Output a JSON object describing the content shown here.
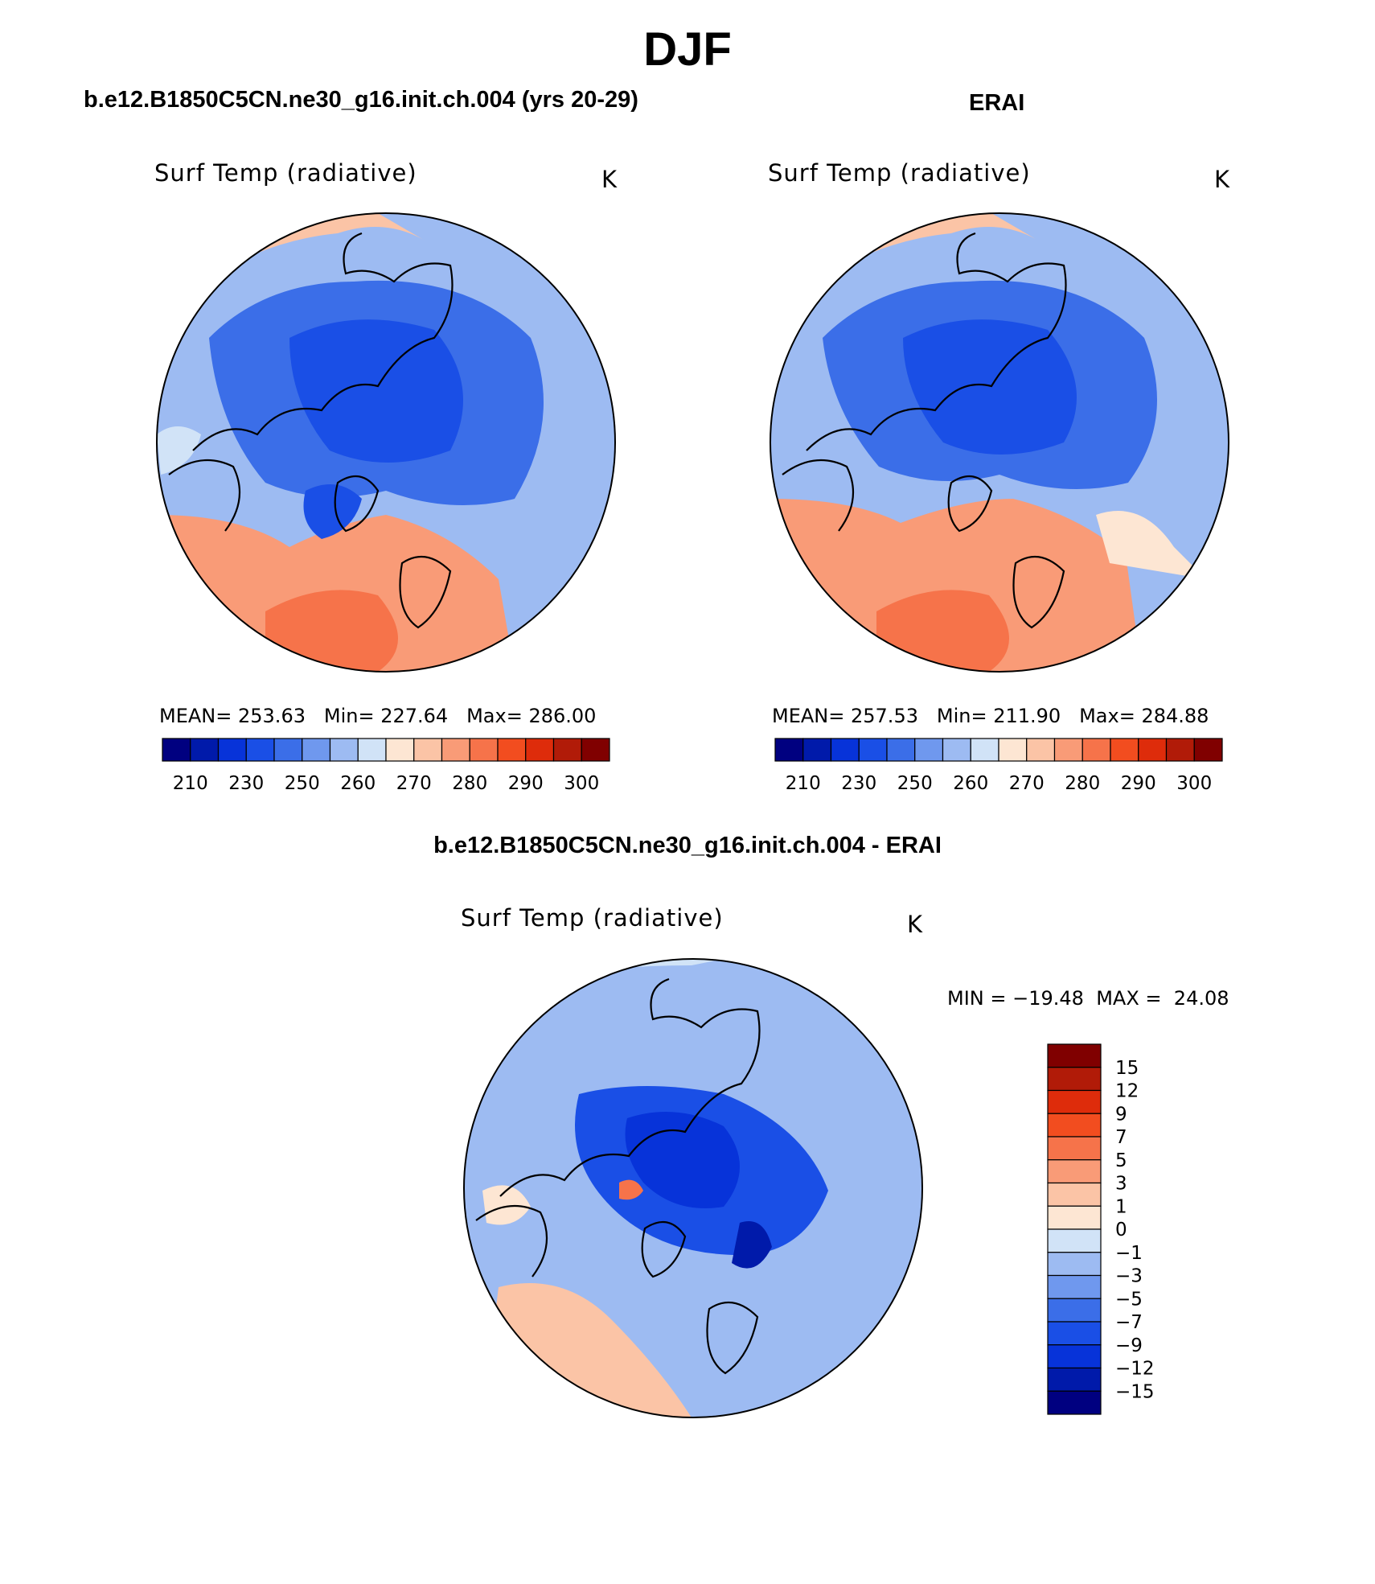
{
  "figure": {
    "title": "DJF"
  },
  "panels": {
    "model": {
      "title": "b.e12.B1850C5CN.ne30_g16.init.ch.004 (yrs 20-29)",
      "variable": "Surf Temp (radiative)",
      "units": "K",
      "stats": {
        "mean_label": "MEAN=",
        "mean": "253.63",
        "min_label": "Min=",
        "min": "227.64",
        "max_label": "Max=",
        "max": "286.00"
      }
    },
    "obs": {
      "title": "ERAI",
      "variable": "Surf Temp (radiative)",
      "units": "K",
      "stats": {
        "mean_label": "MEAN=",
        "mean": "257.53",
        "min_label": "Min=",
        "min": "211.90",
        "max_label": "Max=",
        "max": "284.88"
      }
    },
    "diff": {
      "title": "b.e12.B1850C5CN.ne30_g16.init.ch.004 - ERAI",
      "variable": "Surf Temp (radiative)",
      "units": "K",
      "stats": {
        "min_label": "MIN =",
        "min": "−19.48",
        "max_label": "MAX =",
        "max": "24.08"
      }
    }
  },
  "chart_data": [
    {
      "type": "heatmap",
      "projection": "north-polar-stereographic",
      "title": "b.e12.B1850C5CN.ne30_g16.init.ch.004 (yrs 20-29)",
      "field": "Surf Temp (radiative)",
      "units": "K",
      "colorbar": {
        "orientation": "horizontal",
        "tick_labels": [
          "210",
          "230",
          "250",
          "260",
          "270",
          "280",
          "290",
          "300"
        ],
        "colors": [
          "#000080",
          "#001aaa",
          "#0733d9",
          "#1a4fe6",
          "#3b6ee8",
          "#6f98ee",
          "#9dbbf2",
          "#d1e3f7",
          "#fde6d3",
          "#fbc4a6",
          "#f99b77",
          "#f6734a",
          "#f24d1f",
          "#de2c0b",
          "#b11b08",
          "#800000"
        ]
      }
    },
    {
      "type": "heatmap",
      "projection": "north-polar-stereographic",
      "title": "ERAI",
      "field": "Surf Temp (radiative)",
      "units": "K",
      "colorbar": {
        "orientation": "horizontal",
        "tick_labels": [
          "210",
          "230",
          "250",
          "260",
          "270",
          "280",
          "290",
          "300"
        ],
        "colors": [
          "#000080",
          "#001aaa",
          "#0733d9",
          "#1a4fe6",
          "#3b6ee8",
          "#6f98ee",
          "#9dbbf2",
          "#d1e3f7",
          "#fde6d3",
          "#fbc4a6",
          "#f99b77",
          "#f6734a",
          "#f24d1f",
          "#de2c0b",
          "#b11b08",
          "#800000"
        ]
      }
    },
    {
      "type": "heatmap",
      "projection": "north-polar-stereographic",
      "title": "b.e12.B1850C5CN.ne30_g16.init.ch.004 - ERAI",
      "field": "Surf Temp (radiative)",
      "units": "K",
      "colorbar": {
        "orientation": "vertical",
        "tick_labels": [
          "15",
          "12",
          "9",
          "7",
          "5",
          "3",
          "1",
          "0",
          "−1",
          "−3",
          "−5",
          "−7",
          "−9",
          "−12",
          "−15"
        ],
        "colors": [
          "#800000",
          "#b11b08",
          "#de2c0b",
          "#f24d1f",
          "#f6734a",
          "#f99b77",
          "#fbc4a6",
          "#fde6d3",
          "#d1e3f7",
          "#9dbbf2",
          "#6f98ee",
          "#3b6ee8",
          "#1a4fe6",
          "#0733d9",
          "#001aaa",
          "#000080"
        ]
      }
    }
  ]
}
